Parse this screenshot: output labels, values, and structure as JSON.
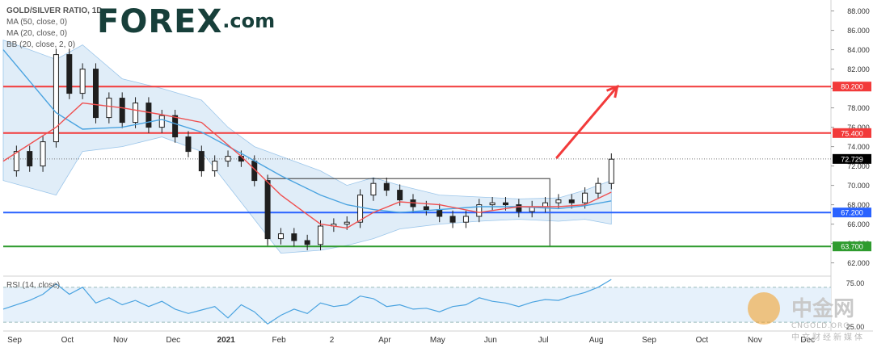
{
  "legend": {
    "title": "GOLD/SILVER RATIO, 1D",
    "ma50": "MA (50, close, 0)",
    "ma20": "MA (20, close, 0)",
    "bb": "BB (20, close, 2, 0)"
  },
  "logo": {
    "name": "FOREX",
    "suffix": ".com"
  },
  "watermark": {
    "name": "中金网",
    "url": "CNGOLD.ORG",
    "tagline": "中文财经新媒体"
  },
  "colors": {
    "resistance_high": "#f23a3a",
    "resistance_mid": "#f23a3a",
    "support_blue": "#2962ff",
    "support_green": "#2e9b2e",
    "ma20": "#ef4f4f",
    "ma50": "#4aa3e0",
    "bb_fill": "#c7dff3",
    "candle": "#1f1f1f",
    "price_tag": "#000000",
    "rsi_line": "#4aa3e0"
  },
  "chart_data": [
    {
      "type": "line",
      "title": "GOLD/SILVER RATIO, 1D",
      "y_axis": {
        "ticks": [
          "88.000",
          "86.000",
          "84.000",
          "82.000",
          "80.000",
          "78.000",
          "76.000",
          "74.000",
          "72.000",
          "70.000",
          "68.000",
          "66.000",
          "64.000",
          "62.000"
        ],
        "ylim": [
          60.8,
          88.8
        ]
      },
      "x_axis": {
        "ticks": [
          "Sep",
          "Oct",
          "Nov",
          "Dec",
          "2021",
          "Feb",
          "2",
          "Apr",
          "May",
          "Jun",
          "Jul",
          "Aug",
          "Sep",
          "Oct",
          "Nov",
          "Dec"
        ]
      },
      "horizontal_levels": [
        {
          "value": 80.2,
          "label": "80.200",
          "color_key": "resistance_high"
        },
        {
          "value": 75.4,
          "label": "75.400",
          "color_key": "resistance_mid"
        },
        {
          "value": 67.2,
          "label": "67.200",
          "color_key": "support_blue"
        },
        {
          "value": 63.7,
          "label": "63.700",
          "color_key": "support_green"
        }
      ],
      "last_price": {
        "value": 72.729,
        "label": "72.729"
      },
      "range_box": {
        "x_start": "Feb",
        "x_end": "Jul",
        "y_low": 63.7,
        "y_high": 70.7
      },
      "arrow": {
        "from": {
          "x": "Jul",
          "y": 72.8
        },
        "to": {
          "x": "Aug",
          "y": 80.2
        }
      },
      "price_path": [
        [
          0,
          71.5
        ],
        [
          1,
          73.5
        ],
        [
          2,
          72.0
        ],
        [
          3,
          74.5
        ],
        [
          4,
          83.5
        ],
        [
          5,
          79.5
        ],
        [
          6,
          82.0
        ],
        [
          7,
          77.0
        ],
        [
          8,
          79.0
        ],
        [
          9,
          76.5
        ],
        [
          10,
          78.5
        ],
        [
          11,
          76.0
        ],
        [
          12,
          77.2
        ],
        [
          13,
          75.0
        ],
        [
          14,
          73.5
        ],
        [
          15,
          71.5
        ],
        [
          16,
          72.5
        ],
        [
          17,
          73.0
        ],
        [
          18,
          72.5
        ],
        [
          19,
          70.5
        ],
        [
          20,
          64.5
        ],
        [
          21,
          65.0
        ],
        [
          22,
          64.3
        ],
        [
          23,
          63.9
        ],
        [
          24,
          65.8
        ],
        [
          25,
          66.0
        ],
        [
          26,
          66.2
        ],
        [
          27,
          69.0
        ],
        [
          28,
          70.2
        ],
        [
          29,
          69.5
        ],
        [
          30,
          68.5
        ],
        [
          31,
          67.8
        ],
        [
          32,
          67.5
        ],
        [
          33,
          66.8
        ],
        [
          34,
          66.2
        ],
        [
          35,
          66.8
        ],
        [
          36,
          68.0
        ],
        [
          37,
          68.2
        ],
        [
          38,
          68.0
        ],
        [
          39,
          67.3
        ],
        [
          40,
          67.8
        ],
        [
          41,
          68.2
        ],
        [
          42,
          68.5
        ],
        [
          43,
          68.2
        ],
        [
          44,
          69.2
        ],
        [
          45,
          70.2
        ],
        [
          46,
          72.7
        ]
      ],
      "ma20": [
        [
          0,
          72.5
        ],
        [
          4,
          76.0
        ],
        [
          6,
          78.5
        ],
        [
          9,
          78.0
        ],
        [
          12,
          77.3
        ],
        [
          15,
          76.5
        ],
        [
          18,
          73.0
        ],
        [
          21,
          69.0
        ],
        [
          24,
          66.0
        ],
        [
          26,
          65.6
        ],
        [
          28,
          67.2
        ],
        [
          30,
          68.3
        ],
        [
          33,
          68.0
        ],
        [
          36,
          67.2
        ],
        [
          39,
          67.8
        ],
        [
          42,
          67.8
        ],
        [
          44,
          68.0
        ],
        [
          46,
          69.3
        ]
      ],
      "ma50": [
        [
          0,
          84.0
        ],
        [
          4,
          77.5
        ],
        [
          6,
          75.8
        ],
        [
          9,
          76.0
        ],
        [
          12,
          76.8
        ],
        [
          15,
          75.5
        ],
        [
          18,
          73.3
        ],
        [
          21,
          71.0
        ],
        [
          24,
          69.0
        ],
        [
          26,
          68.0
        ],
        [
          28,
          67.5
        ],
        [
          30,
          67.2
        ],
        [
          33,
          67.5
        ],
        [
          36,
          67.8
        ],
        [
          39,
          67.8
        ],
        [
          42,
          67.6
        ],
        [
          44,
          67.9
        ],
        [
          46,
          68.4
        ]
      ],
      "bb_upper": [
        [
          0,
          85.0
        ],
        [
          4,
          83.0
        ],
        [
          6,
          84.5
        ],
        [
          9,
          81.0
        ],
        [
          12,
          80.0
        ],
        [
          15,
          78.8
        ],
        [
          17,
          76.0
        ],
        [
          19,
          74.0
        ],
        [
          21,
          73.0
        ],
        [
          24,
          71.5
        ],
        [
          26,
          70.0
        ],
        [
          28,
          70.8
        ],
        [
          30,
          70.0
        ],
        [
          33,
          69.0
        ],
        [
          36,
          68.8
        ],
        [
          39,
          68.6
        ],
        [
          42,
          68.7
        ],
        [
          44,
          69.5
        ],
        [
          46,
          70.5
        ]
      ],
      "bb_lower": [
        [
          0,
          70.5
        ],
        [
          4,
          69.0
        ],
        [
          6,
          73.5
        ],
        [
          9,
          74.0
        ],
        [
          12,
          75.0
        ],
        [
          15,
          73.5
        ],
        [
          17,
          70.0
        ],
        [
          19,
          66.5
        ],
        [
          21,
          63.0
        ],
        [
          24,
          63.3
        ],
        [
          26,
          63.8
        ],
        [
          28,
          64.5
        ],
        [
          30,
          65.5
        ],
        [
          33,
          66.0
        ],
        [
          36,
          66.3
        ],
        [
          39,
          66.5
        ],
        [
          42,
          66.3
        ],
        [
          44,
          66.5
        ],
        [
          46,
          66.0
        ]
      ],
      "x_index_range": [
        0,
        46
      ],
      "x_index_map": {
        "Sep": 0,
        "Oct": 4,
        "Nov": 8,
        "Dec": 12,
        "2021": 16,
        "Feb": 20,
        "2": 24,
        "Apr": 28,
        "May": 32,
        "Jun": 36,
        "Jul": 40,
        "Aug": 44
      }
    },
    {
      "type": "line",
      "title": "RSI (14, close)",
      "y_axis": {
        "ticks": [
          "75.00",
          "25.00"
        ],
        "ylim": [
          20,
          80
        ],
        "band": [
          30,
          70
        ]
      },
      "rsi_path": [
        [
          0,
          45
        ],
        [
          2,
          55
        ],
        [
          3,
          62
        ],
        [
          4,
          74
        ],
        [
          5,
          62
        ],
        [
          6,
          70
        ],
        [
          7,
          52
        ],
        [
          8,
          58
        ],
        [
          9,
          50
        ],
        [
          10,
          55
        ],
        [
          11,
          48
        ],
        [
          12,
          54
        ],
        [
          13,
          45
        ],
        [
          14,
          40
        ],
        [
          15,
          44
        ],
        [
          16,
          48
        ],
        [
          17,
          35
        ],
        [
          18,
          50
        ],
        [
          19,
          42
        ],
        [
          20,
          28
        ],
        [
          21,
          38
        ],
        [
          22,
          45
        ],
        [
          23,
          40
        ],
        [
          24,
          52
        ],
        [
          25,
          48
        ],
        [
          26,
          50
        ],
        [
          27,
          60
        ],
        [
          28,
          57
        ],
        [
          29,
          48
        ],
        [
          30,
          50
        ],
        [
          31,
          45
        ],
        [
          32,
          46
        ],
        [
          33,
          42
        ],
        [
          34,
          48
        ],
        [
          35,
          50
        ],
        [
          36,
          58
        ],
        [
          37,
          54
        ],
        [
          38,
          52
        ],
        [
          39,
          48
        ],
        [
          40,
          53
        ],
        [
          41,
          56
        ],
        [
          42,
          55
        ],
        [
          43,
          60
        ],
        [
          44,
          64
        ],
        [
          45,
          70
        ],
        [
          46,
          79
        ]
      ]
    }
  ]
}
